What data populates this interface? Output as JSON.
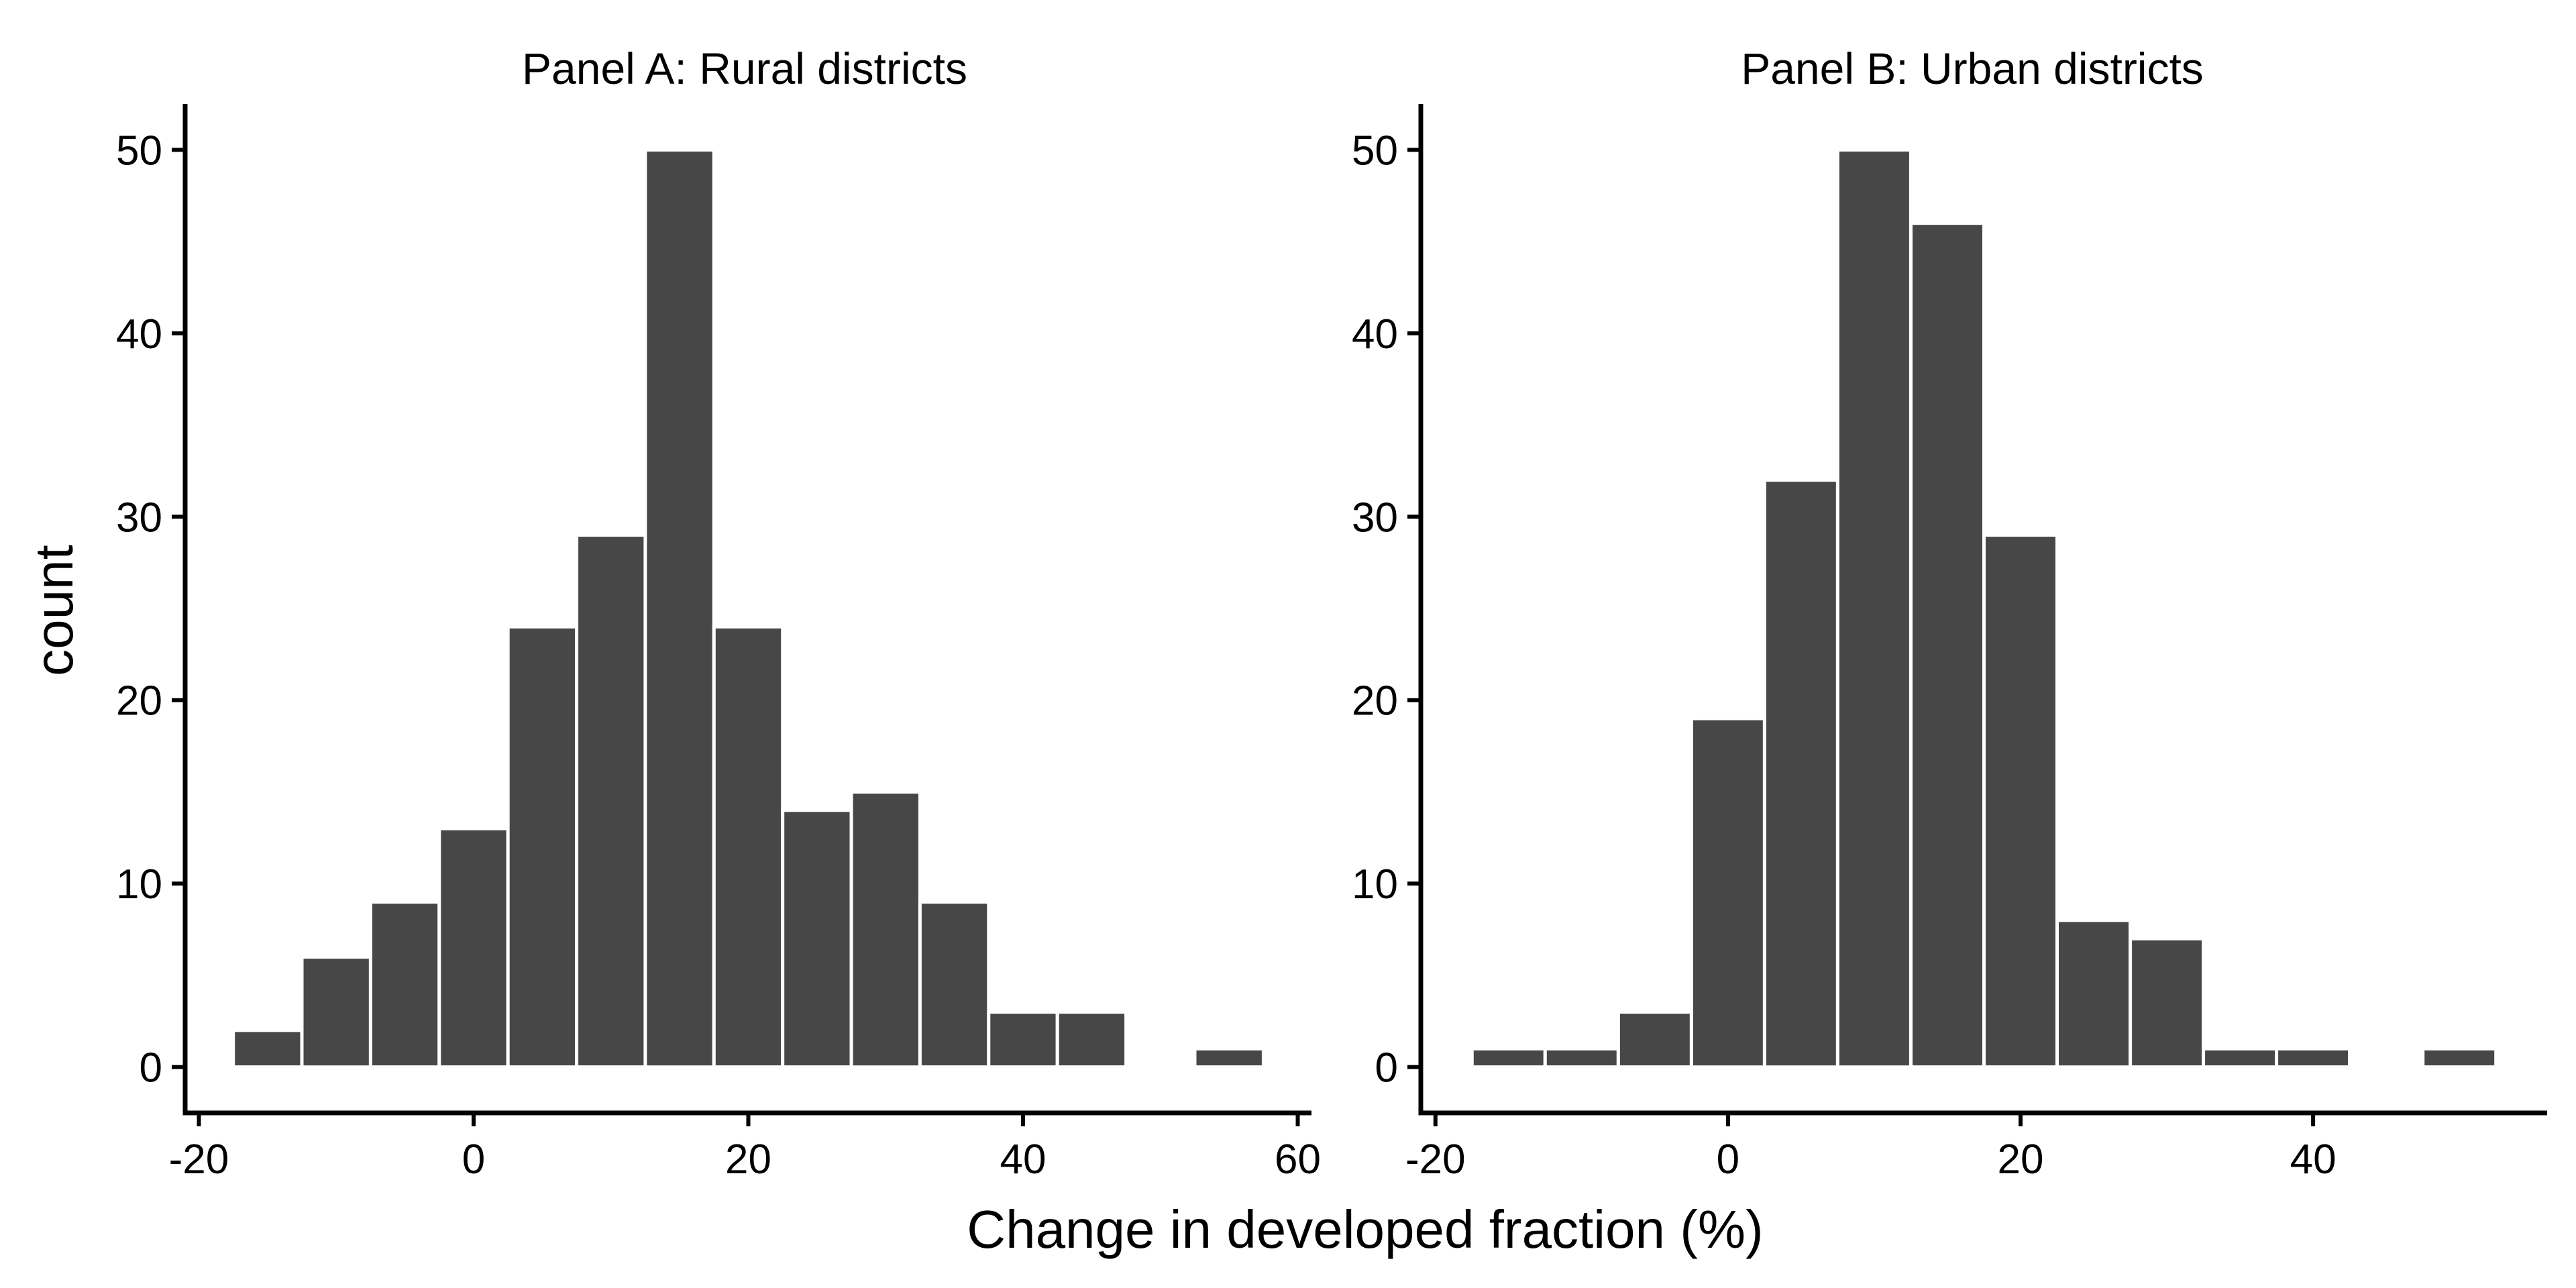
{
  "figure": {
    "xlabel": "Change in developed fraction (%)",
    "ylabel": "count"
  },
  "colors": {
    "bar": "#474747",
    "bar_outline": "#ffffff",
    "axis": "#000000",
    "background": "#ffffff"
  },
  "chart_data": [
    {
      "type": "bar",
      "title": "Panel A: Rural districts",
      "xlabel": "Change in developed fraction (%)",
      "ylabel": "count",
      "bin_width": 5,
      "x": [
        -15,
        -10,
        -5,
        0,
        5,
        10,
        15,
        20,
        25,
        30,
        35,
        40,
        45,
        50,
        55
      ],
      "values": [
        2,
        6,
        9,
        13,
        24,
        29,
        50,
        24,
        14,
        15,
        9,
        3,
        3,
        0,
        1
      ],
      "xlim": [
        -21,
        61
      ],
      "ylim": [
        -2.5,
        52.5
      ],
      "xticks": [
        -20,
        0,
        20,
        40,
        60
      ],
      "yticks": [
        0,
        10,
        20,
        30,
        40,
        50
      ],
      "grid": false
    },
    {
      "type": "bar",
      "title": "Panel B: Urban districts",
      "xlabel": "Change in developed fraction (%)",
      "ylabel": "count",
      "bin_width": 5,
      "x": [
        -15,
        -10,
        -5,
        0,
        5,
        10,
        15,
        20,
        25,
        30,
        35,
        40,
        45,
        50
      ],
      "values": [
        1,
        1,
        3,
        19,
        32,
        50,
        46,
        29,
        8,
        7,
        1,
        1,
        0,
        1
      ],
      "xlim": [
        -21,
        56
      ],
      "ylim": [
        -2.5,
        52.5
      ],
      "xticks": [
        -20,
        0,
        20,
        40
      ],
      "yticks": [
        0,
        10,
        20,
        30,
        40,
        50
      ],
      "grid": false
    }
  ]
}
